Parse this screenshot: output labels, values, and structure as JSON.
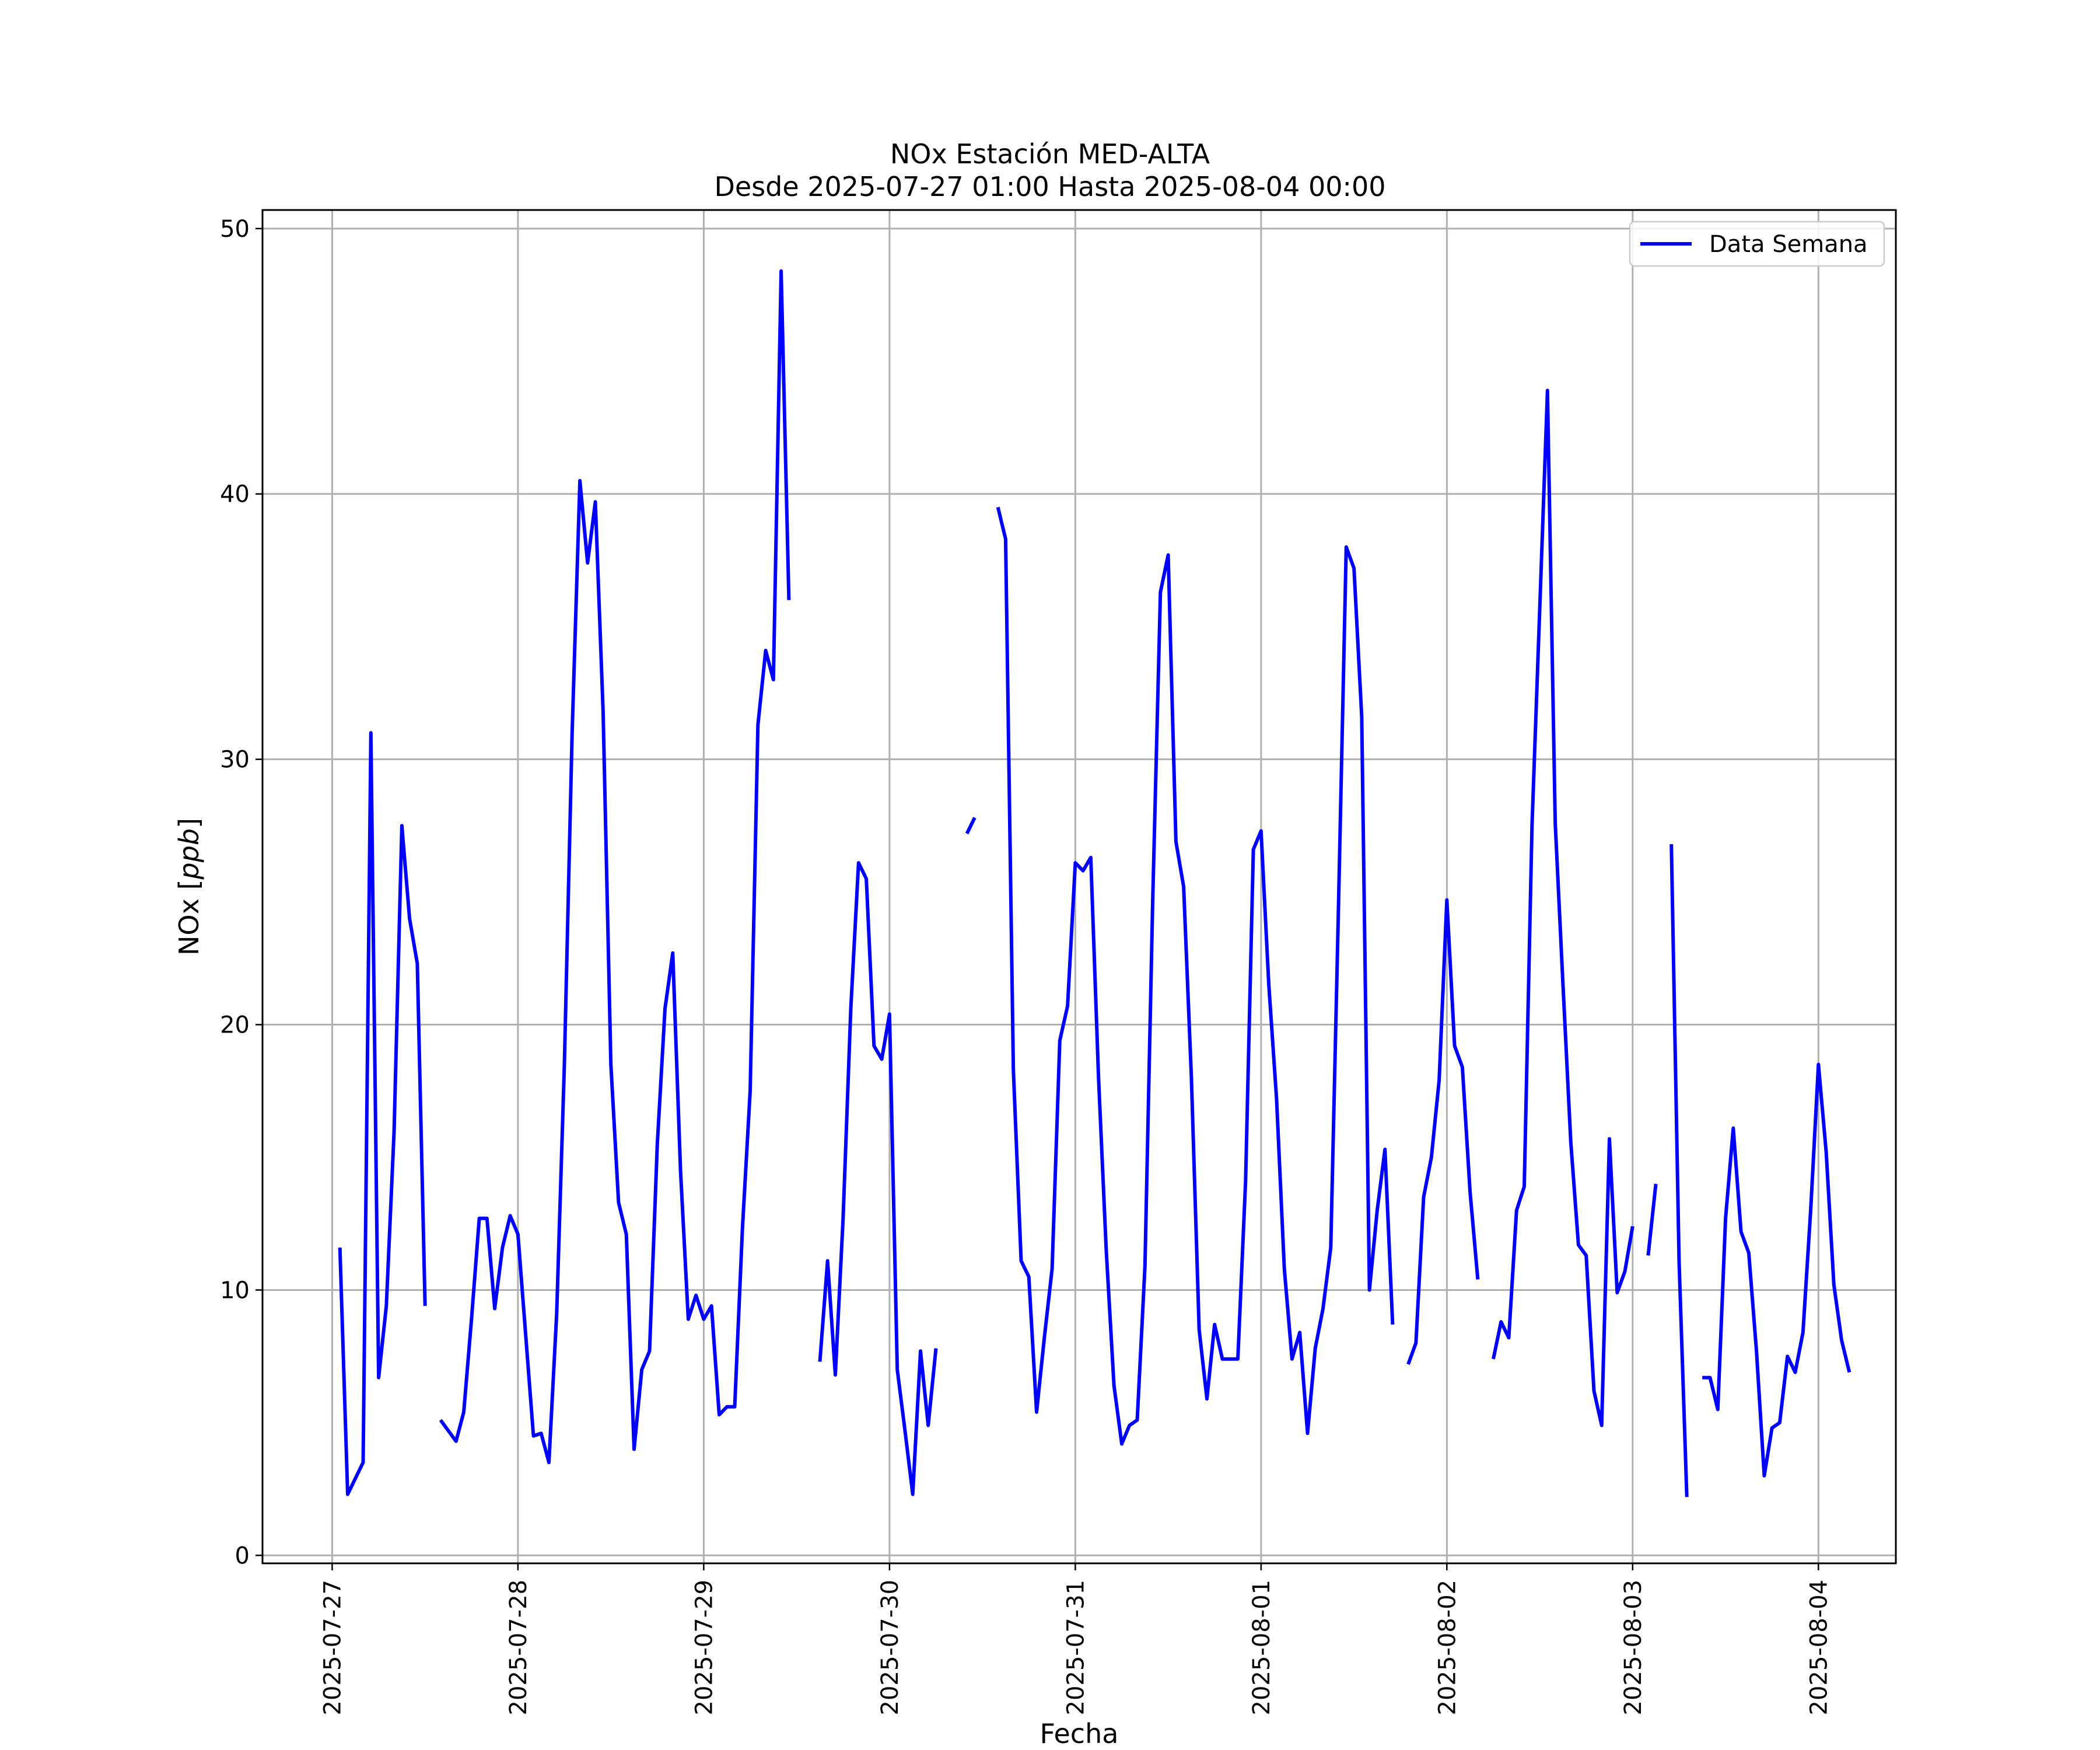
{
  "chart_data": {
    "type": "line",
    "title": "NOx Estación MED-ALTA",
    "subtitle": "Desde 2025-07-27 01:00 Hasta 2025-08-04 00:00",
    "xlabel": "Fecha",
    "ylabel_text": "NOx [",
    "ylabel_unit": "ppb",
    "ylabel_close": "]",
    "xlim": [
      "2025-07-26 15:00",
      "2025-08-04 10:00"
    ],
    "ylim": [
      -0.3,
      50.7
    ],
    "x_ticks": [
      "2025-07-27",
      "2025-07-28",
      "2025-07-29",
      "2025-07-30",
      "2025-07-31",
      "2025-08-01",
      "2025-08-02",
      "2025-08-03",
      "2025-08-04"
    ],
    "y_ticks": [
      "0",
      "10",
      "20",
      "30",
      "40",
      "50"
    ],
    "y_tick_values": [
      0,
      10,
      20,
      30,
      40,
      50
    ],
    "grid": true,
    "legend_position": "top-right",
    "series": [
      {
        "name": "Data Semana",
        "color": "#0000ff",
        "start": "2025-07-27 01:00",
        "step_hours": 1,
        "values": [
          11.6,
          2.3,
          2.9,
          3.5,
          31,
          6.7,
          9.4,
          16,
          27.5,
          24,
          22.3,
          9.4,
          null,
          5.1,
          4.7,
          4.3,
          5.4,
          8.9,
          12.7,
          12.7,
          9.3,
          11.6,
          12.8,
          12.1,
          8.3,
          4.5,
          4.6,
          3.5,
          9.1,
          18.5,
          31,
          40.5,
          37.4,
          39.7,
          31.8,
          18.5,
          13.3,
          12.1,
          4.0,
          7.0,
          7.7,
          15.5,
          20.6,
          22.7,
          14.5,
          8.9,
          9.8,
          8.9,
          9.4,
          5.3,
          5.6,
          5.6,
          12.3,
          17.5,
          31.3,
          34.1,
          33.0,
          48.4,
          36.0,
          null,
          null,
          null,
          7.3,
          11.1,
          6.8,
          12.7,
          20.6,
          26.1,
          25.5,
          19.2,
          18.7,
          20.4,
          7.0,
          4.7,
          2.3,
          7.7,
          4.9,
          7.8,
          null,
          null,
          null,
          27.2,
          27.8,
          null,
          null,
          39.5,
          38.3,
          18.3,
          11.1,
          10.5,
          5.4,
          8.2,
          10.8,
          19.4,
          20.7,
          26.1,
          25.8,
          26.3,
          18.0,
          11.5,
          6.4,
          4.2,
          4.9,
          5.1,
          10.9,
          24.7,
          36.3,
          37.7,
          26.9,
          25.2,
          18.0,
          8.5,
          5.9,
          8.7,
          7.4,
          7.4,
          7.4,
          14.1,
          26.6,
          27.3,
          21.5,
          17.2,
          10.8,
          7.4,
          8.4,
          4.6,
          7.8,
          9.3,
          11.6,
          24.4,
          38.0,
          37.2,
          31.6,
          10.0,
          13.0,
          15.3,
          8.7,
          null,
          7.2,
          8.0,
          13.5,
          15.0,
          17.9,
          24.7,
          19.2,
          18.4,
          13.7,
          10.4,
          null,
          7.4,
          8.8,
          8.2,
          13.0,
          13.9,
          27.5,
          35.7,
          43.9,
          27.6,
          21.5,
          15.6,
          11.7,
          11.3,
          6.2,
          4.9,
          15.7,
          9.9,
          10.7,
          12.4,
          null,
          11.3,
          14.0,
          null,
          26.8,
          11.1,
          2.2,
          null,
          6.7,
          6.7,
          5.5,
          12.7,
          16.1,
          12.2,
          11.4,
          7.7,
          3.0,
          4.8,
          5.0,
          7.5,
          6.9,
          8.4,
          13.0,
          18.5,
          15.2,
          10.2,
          8.1,
          6.9
        ]
      }
    ]
  }
}
